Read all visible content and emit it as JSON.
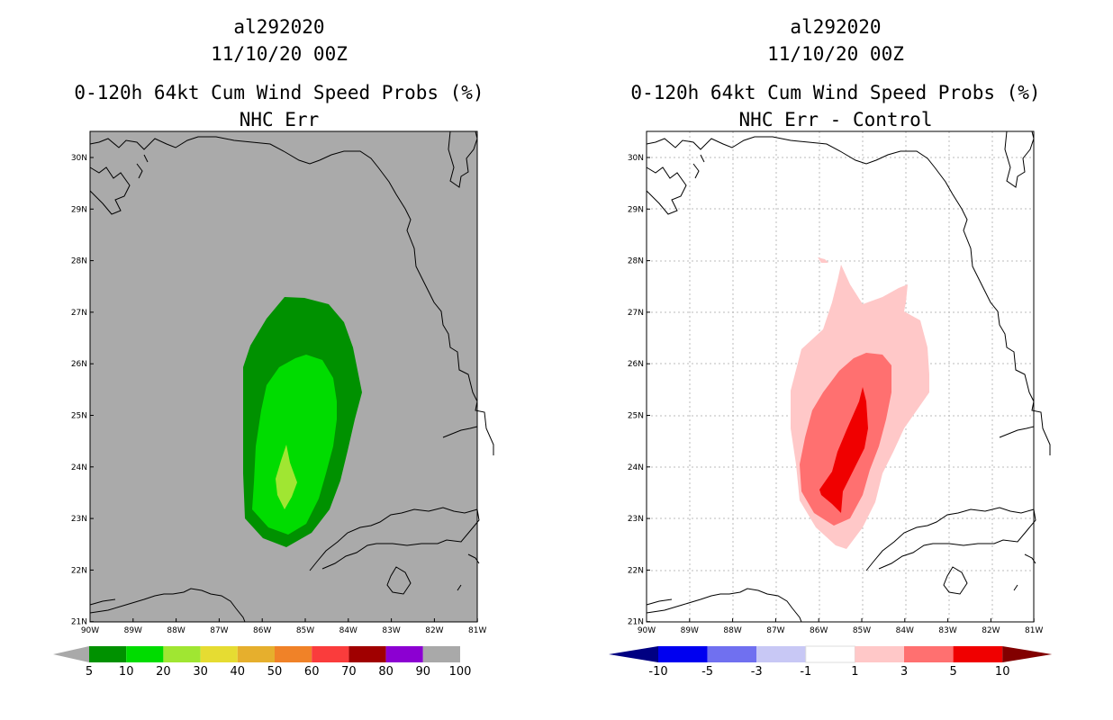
{
  "panels": [
    {
      "storm_id": "al292020",
      "datetime": "11/10/20 00Z",
      "product": "0-120h 64kt Cum Wind Speed Probs (%)",
      "subtitle": "NHC Err",
      "colorbar_labels": [
        "5",
        "10",
        "20",
        "30",
        "40",
        "50",
        "60",
        "70",
        "80",
        "90",
        "100"
      ],
      "colorbar_colors": [
        "#009100",
        "#00dc00",
        "#a0e632",
        "#e6dc32",
        "#e6af2d",
        "#f08228",
        "#fa3c3c",
        "#a00000",
        "#8c00d2",
        "#a9a9a9"
      ]
    },
    {
      "storm_id": "al292020",
      "datetime": "11/10/20 00Z",
      "product": "0-120h 64kt Cum Wind Speed Probs (%)",
      "subtitle": "NHC Err - Control",
      "colorbar_labels": [
        "-10",
        "-5",
        "-3",
        "-1",
        "1",
        "3",
        "5",
        "10"
      ],
      "colorbar_colors": [
        "#000082",
        "#0000f0",
        "#7070f0",
        "#c8c8f5",
        "#ffffff",
        "#ffc8c8",
        "#ff7070",
        "#f00000",
        "#820000"
      ]
    }
  ],
  "map": {
    "lat_labels": [
      "30N",
      "29N",
      "28N",
      "27N",
      "26N",
      "25N",
      "24N",
      "23N",
      "22N",
      "21N"
    ],
    "lon_labels": [
      "90W",
      "89W",
      "88W",
      "87W",
      "86W",
      "85W",
      "84W",
      "83W",
      "82W",
      "81W"
    ],
    "ocean_color_left": "#aaaaaa",
    "ocean_color_right": "#ffffff"
  }
}
